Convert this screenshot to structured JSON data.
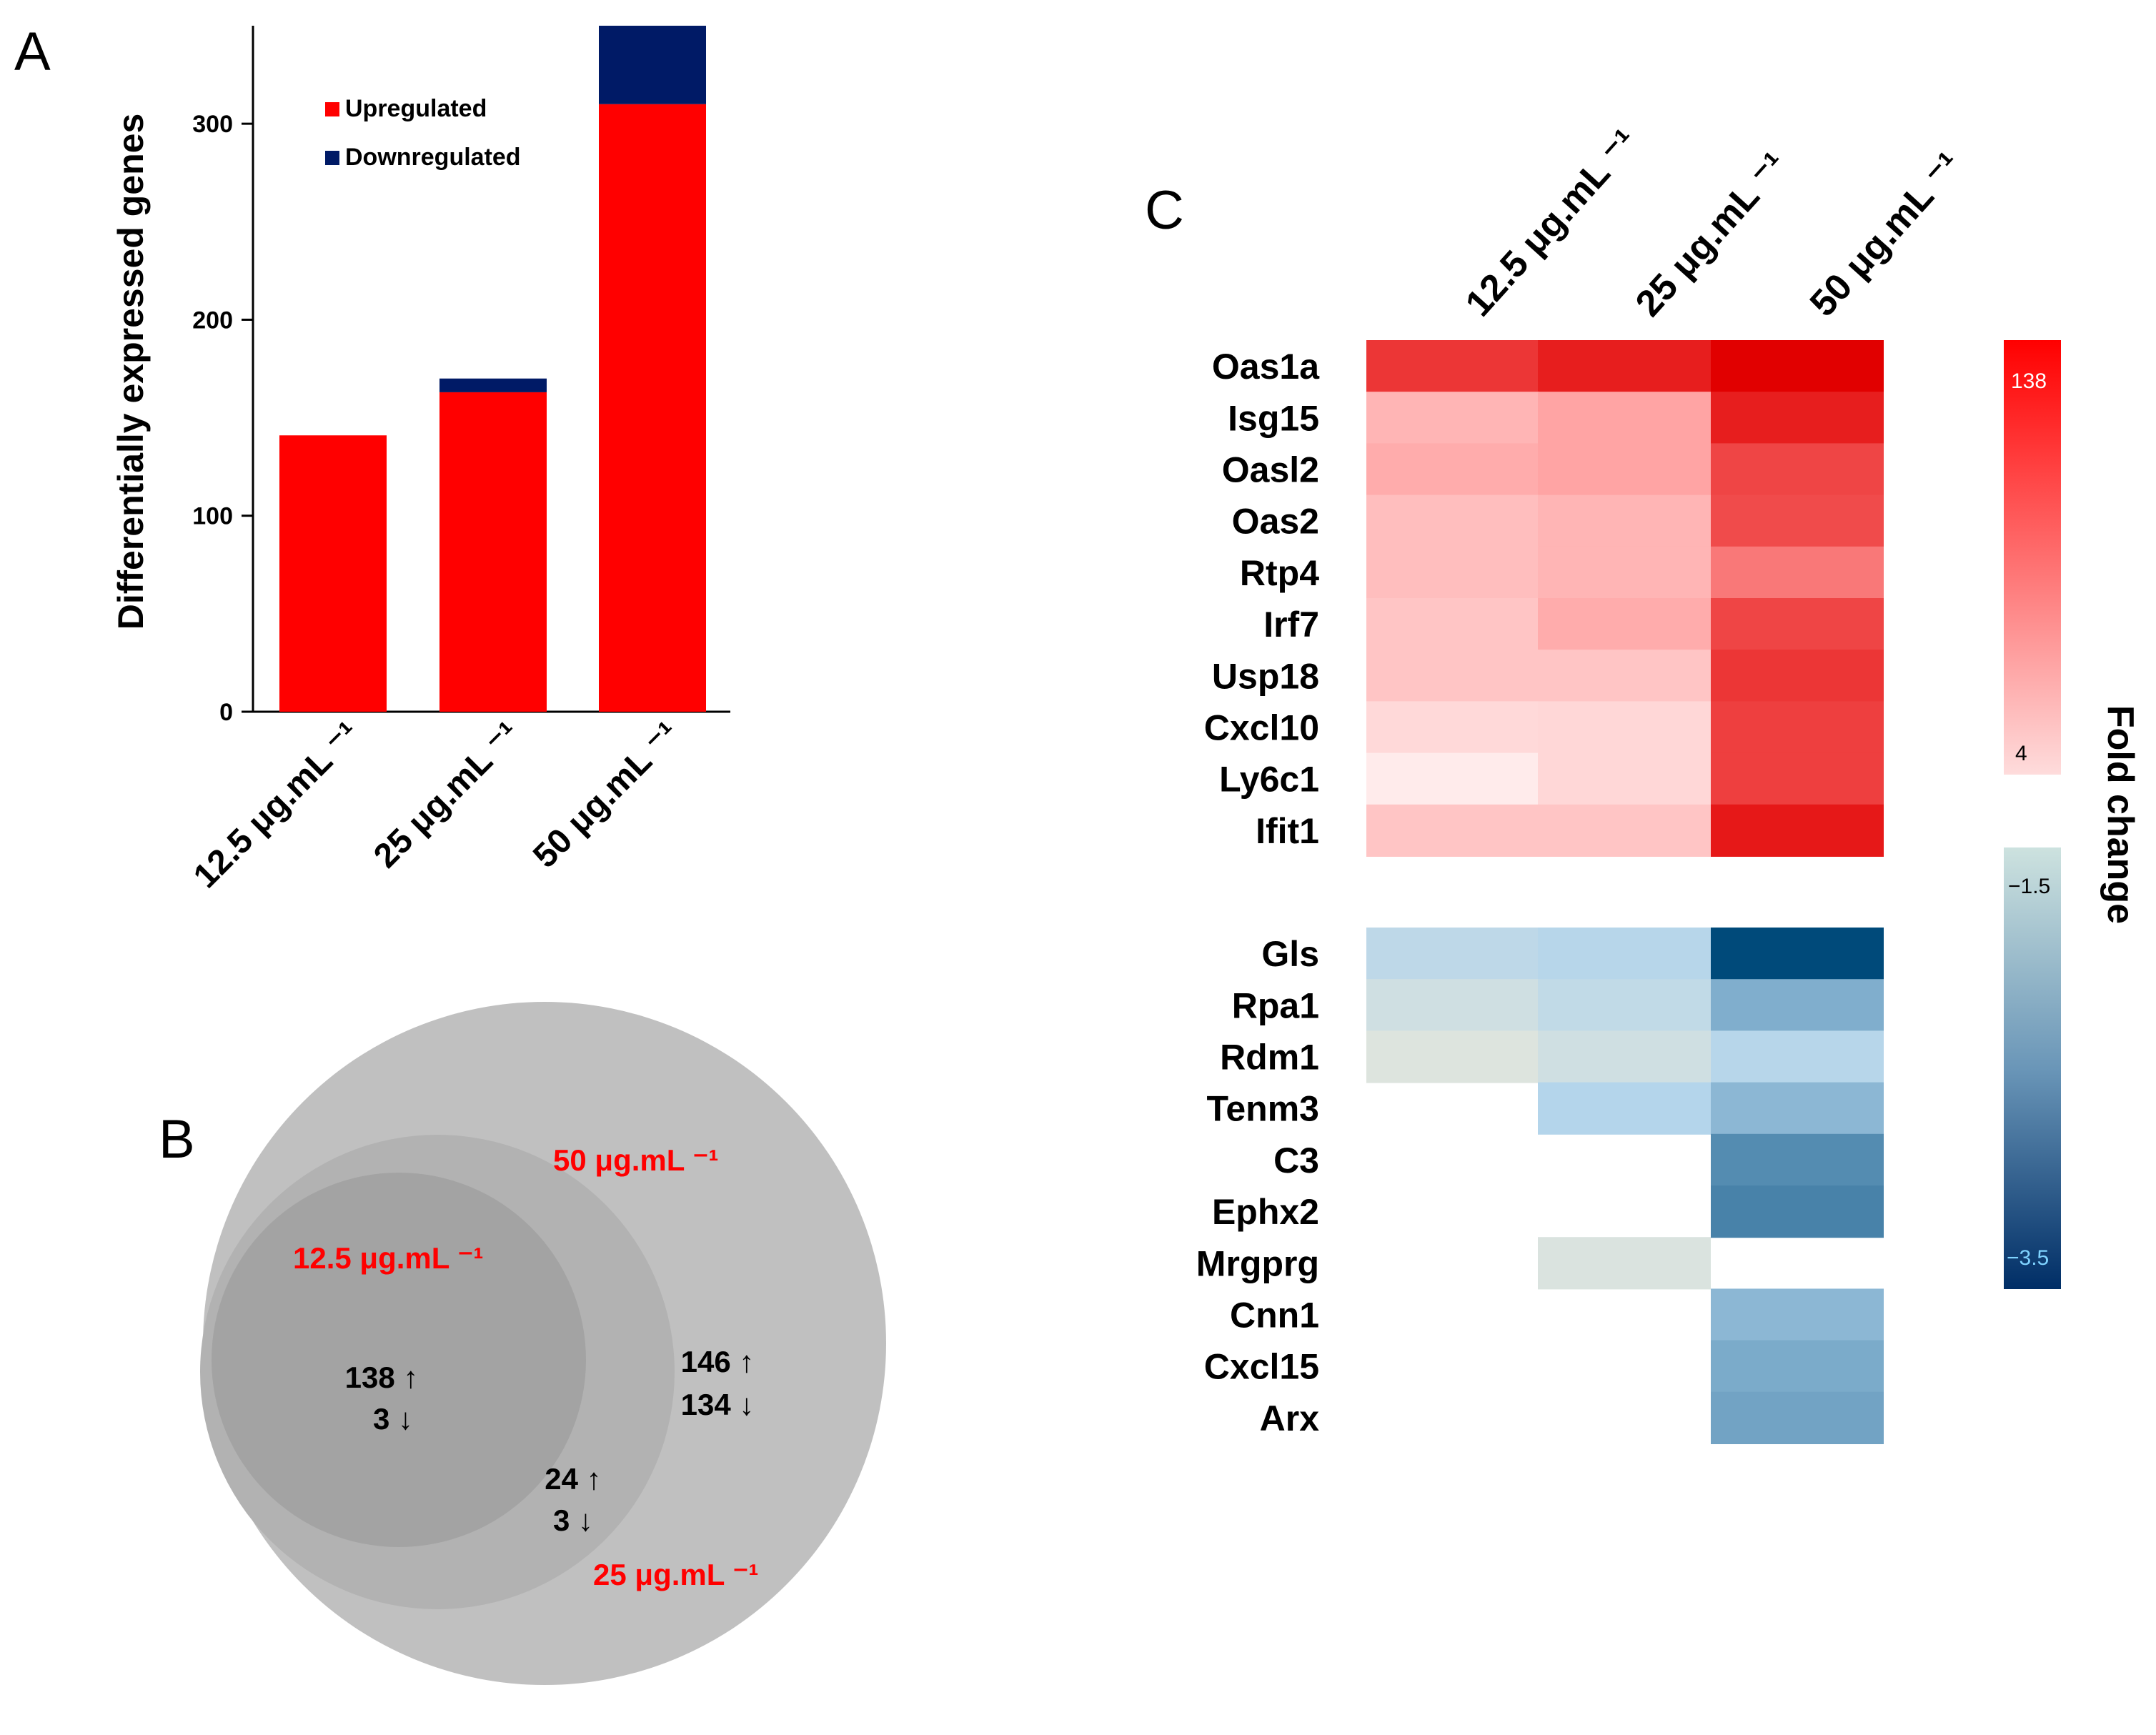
{
  "chart_data": [
    {
      "panel": "A",
      "type": "bar",
      "stacked": true,
      "ylabel": "Differentially expressed genes",
      "ylim": [
        0,
        350
      ],
      "yticks": [
        0,
        100,
        200,
        300
      ],
      "categories": [
        "12.5 μg.mL ⁻¹",
        "25 μg.mL ⁻¹",
        "50 μg.mL ⁻¹"
      ],
      "series": [
        {
          "name": "Upregulated",
          "color": "#ff0000",
          "values": [
            141,
            163,
            310
          ]
        },
        {
          "name": "Downregulated",
          "color": "#001a66",
          "values": [
            0,
            7,
            40
          ]
        }
      ],
      "legend": "top-left"
    },
    {
      "panel": "B",
      "type": "venn",
      "sets": [
        {
          "label": "50 μg.mL ⁻¹",
          "color": "#c0c0c0"
        },
        {
          "label": "12.5 μg.mL ⁻¹",
          "color": "#a3a3a3"
        },
        {
          "label": "25 μg.mL ⁻¹",
          "color": "#b0b0b0"
        }
      ],
      "regions": [
        {
          "region": "all three",
          "up": "138 ↑",
          "down": "3 ↓"
        },
        {
          "region": "25 and 50",
          "up": "24 ↑",
          "down": "3 ↓"
        },
        {
          "region": "50 only",
          "up": "146 ↑",
          "down": "134 ↓"
        }
      ],
      "label_color": "#ff0000"
    },
    {
      "panel": "C",
      "type": "heatmap",
      "columns": [
        "12.5 μg.mL ⁻¹",
        "25 μg.mL ⁻¹",
        "50 μg.mL ⁻¹"
      ],
      "up_genes": [
        {
          "gene": "Oas1a",
          "values": [
            0.82,
            0.9,
            1.0
          ]
        },
        {
          "gene": "Isg15",
          "values": [
            0.33,
            0.42,
            0.9
          ]
        },
        {
          "gene": "Oasl2",
          "values": [
            0.38,
            0.42,
            0.77
          ]
        },
        {
          "gene": "Oas2",
          "values": [
            0.28,
            0.33,
            0.75
          ]
        },
        {
          "gene": "Rtp4",
          "values": [
            0.28,
            0.33,
            0.6
          ]
        },
        {
          "gene": "Irf7",
          "values": [
            0.24,
            0.38,
            0.77
          ]
        },
        {
          "gene": "Usp18",
          "values": [
            0.24,
            0.24,
            0.82
          ]
        },
        {
          "gene": "Cxcl10",
          "values": [
            0.13,
            0.14,
            0.79
          ]
        },
        {
          "gene": "Ly6c1",
          "values": [
            0.03,
            0.14,
            0.79
          ]
        },
        {
          "gene": "Ifit1",
          "values": [
            0.24,
            0.24,
            0.92
          ]
        }
      ],
      "down_genes": [
        {
          "gene": "Gls",
          "values": [
            0.18,
            0.22,
            1.0
          ]
        },
        {
          "gene": "Rpa1",
          "values": [
            0.08,
            0.16,
            0.55
          ]
        },
        {
          "gene": "Rdm1",
          "values": [
            0.0,
            0.08,
            0.22
          ]
        },
        {
          "gene": "Tenm3",
          "values": [
            null,
            0.24,
            0.48
          ]
        },
        {
          "gene": "C3",
          "values": [
            null,
            null,
            0.72
          ]
        },
        {
          "gene": "Ephx2",
          "values": [
            null,
            null,
            0.76
          ]
        },
        {
          "gene": "Mrgprg",
          "values": [
            null,
            0.02,
            null
          ]
        },
        {
          "gene": "Cnn1",
          "values": [
            null,
            null,
            0.48
          ]
        },
        {
          "gene": "Cxcl15",
          "values": [
            null,
            null,
            0.58
          ]
        },
        {
          "gene": "Arx",
          "values": [
            null,
            null,
            0.62
          ]
        }
      ],
      "colorbar_up": {
        "max_label": "138",
        "min_label": "4",
        "color_low": "#fedcdc",
        "color_high": "#ff0000"
      },
      "colorbar_down": {
        "max_label": "−1.5",
        "min_label": "−3.5",
        "color_low": "#cde2df",
        "color_high": "#002e66"
      },
      "colorbar_title": "Fold change"
    }
  ],
  "panel_letters": {
    "a": "A",
    "b": "B",
    "c": "C"
  }
}
